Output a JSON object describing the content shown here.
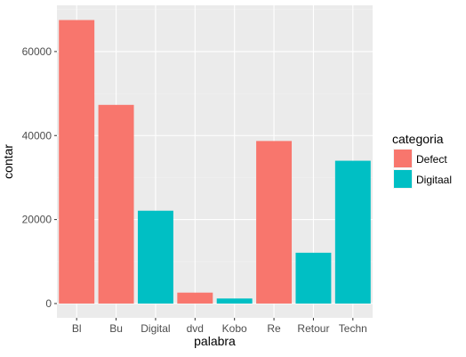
{
  "chart_data": {
    "type": "bar",
    "xlabel": "palabra",
    "ylabel": "contar",
    "categories": [
      "Bl",
      "Bu",
      "Digital",
      "dvd",
      "Kobo",
      "Re",
      "Retour",
      "Techn"
    ],
    "values": [
      67500,
      47300,
      22100,
      2600,
      1200,
      38700,
      12100,
      34000
    ],
    "series_of_bar": [
      "Defect",
      "Defect",
      "Digitaal",
      "Defect",
      "Digitaal",
      "Defect",
      "Digitaal",
      "Digitaal"
    ],
    "yticks": [
      0,
      20000,
      40000,
      60000
    ],
    "ytick_labels": [
      "0",
      "20000",
      "40000",
      "60000"
    ],
    "ylim": [
      -3400,
      71000
    ],
    "grid": true,
    "legend": {
      "title": "categoria",
      "position": "right",
      "entries": [
        {
          "name": "Defect",
          "color": "#F8766D"
        },
        {
          "name": "Digitaal",
          "color": "#00BFC4"
        }
      ]
    },
    "colors": {
      "panel_background": "#EBEBEB",
      "grid_major": "#FFFFFF",
      "grid_minor": "#F2F2F2",
      "tick_color": "#333333"
    }
  }
}
